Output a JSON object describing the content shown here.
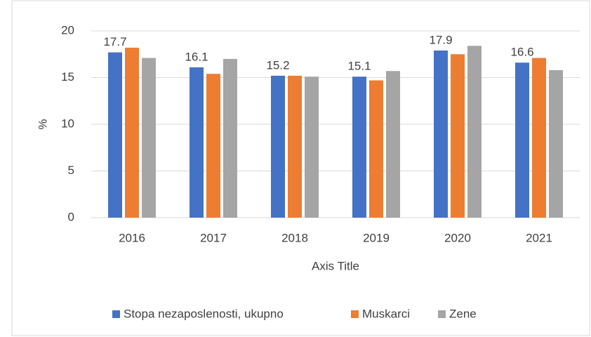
{
  "chart_data": {
    "type": "bar",
    "categories": [
      "2016",
      "2017",
      "2018",
      "2019",
      "2020",
      "2021"
    ],
    "series": [
      {
        "name": "Stopa nezaposlenosti, ukupno",
        "color": "#4472c4",
        "values": [
          17.7,
          16.1,
          15.2,
          15.1,
          17.9,
          16.6
        ],
        "data_labels": true
      },
      {
        "name": "Muskarci",
        "color": "#ed7d31",
        "values": [
          18.2,
          15.4,
          15.2,
          14.7,
          17.5,
          17.1
        ]
      },
      {
        "name": "Zene",
        "color": "#a5a5a5",
        "values": [
          17.1,
          17.0,
          15.1,
          15.7,
          18.4,
          15.8
        ]
      }
    ],
    "ylabel": "%",
    "xlabel": "Axis Title",
    "ylim": [
      0,
      20
    ],
    "yticks": [
      0,
      5,
      10,
      15,
      20
    ],
    "grid": true,
    "legend": "bottom"
  }
}
